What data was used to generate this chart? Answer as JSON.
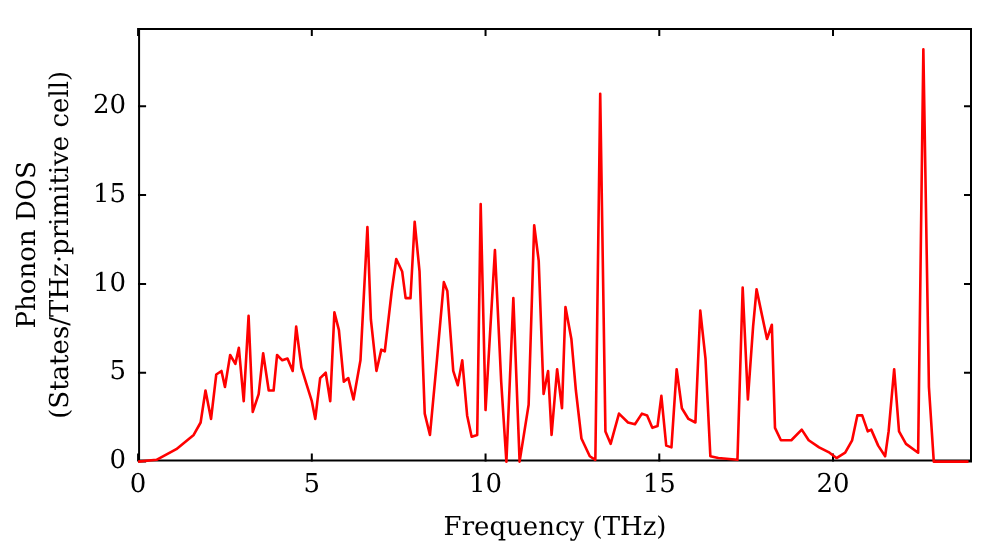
{
  "chart_data": {
    "type": "line",
    "xlabel": "Frequency (THz)",
    "ylabel": "Phonon DOS\n(States/THz·primitive cell)",
    "xlim": [
      0,
      24
    ],
    "xticks": [
      0,
      5,
      10,
      15,
      20
    ],
    "ylim": [
      0,
      24.4
    ],
    "yticks": [
      0,
      5,
      10,
      15,
      20
    ],
    "grid": false,
    "legend": false,
    "marker": "none",
    "line_style": "solid",
    "series": [
      {
        "color": "#ff0000",
        "x": [
          0,
          0.53,
          1.1,
          1.6,
          1.8,
          1.94,
          2.1,
          2.25,
          2.4,
          2.5,
          2.65,
          2.8,
          2.9,
          3.04,
          3.18,
          3.3,
          3.47,
          3.6,
          3.76,
          3.9,
          4.0,
          4.15,
          4.3,
          4.45,
          4.55,
          4.7,
          4.84,
          5.0,
          5.1,
          5.24,
          5.4,
          5.53,
          5.65,
          5.78,
          5.92,
          6.05,
          6.2,
          6.4,
          6.6,
          6.7,
          6.86,
          7.0,
          7.1,
          7.3,
          7.43,
          7.6,
          7.7,
          7.84,
          7.96,
          8.1,
          8.25,
          8.4,
          8.6,
          8.8,
          8.9,
          9.07,
          9.2,
          9.33,
          9.47,
          9.6,
          9.76,
          9.86,
          10.0,
          10.27,
          10.45,
          10.6,
          10.8,
          10.98,
          11.24,
          11.4,
          11.53,
          11.67,
          11.8,
          11.9,
          12.06,
          12.2,
          12.3,
          12.47,
          12.6,
          12.76,
          13.0,
          13.16,
          13.3,
          13.45,
          13.6,
          13.84,
          14.1,
          14.3,
          14.5,
          14.65,
          14.8,
          14.95,
          15.06,
          15.2,
          15.35,
          15.5,
          15.65,
          15.84,
          16.04,
          16.18,
          16.33,
          16.47,
          16.7,
          17.25,
          17.4,
          17.55,
          17.7,
          17.8,
          17.96,
          18.1,
          18.24,
          18.33,
          18.5,
          18.8,
          19.1,
          19.3,
          19.6,
          19.9,
          20.1,
          20.35,
          20.55,
          20.7,
          20.84,
          21.0,
          21.1,
          21.3,
          21.5,
          21.6,
          21.76,
          21.9,
          22.1,
          22.45,
          22.6,
          22.76,
          22.9,
          23.9
        ],
        "values": [
          0,
          0.1,
          0.7,
          1.5,
          2.2,
          4.0,
          2.4,
          4.9,
          5.1,
          4.2,
          6.0,
          5.5,
          6.4,
          3.4,
          8.2,
          2.8,
          3.8,
          6.1,
          4.0,
          4.0,
          6.0,
          5.7,
          5.8,
          5.1,
          7.6,
          5.3,
          4.4,
          3.4,
          2.4,
          4.7,
          5.0,
          3.4,
          8.4,
          7.4,
          4.5,
          4.7,
          3.5,
          5.7,
          13.2,
          8.0,
          5.1,
          6.3,
          6.2,
          9.6,
          11.4,
          10.7,
          9.2,
          9.2,
          13.5,
          10.7,
          2.7,
          1.5,
          5.7,
          10.1,
          9.6,
          5.1,
          4.3,
          5.7,
          2.6,
          1.4,
          1.5,
          14.5,
          2.9,
          11.9,
          4.5,
          0,
          9.2,
          0,
          3.2,
          13.3,
          11.3,
          3.8,
          5.1,
          1.5,
          5.2,
          3.0,
          8.7,
          6.9,
          4.0,
          1.3,
          0.3,
          0.1,
          20.7,
          1.7,
          1.0,
          2.7,
          2.2,
          2.1,
          2.7,
          2.6,
          1.9,
          2.0,
          3.7,
          0.9,
          0.8,
          5.2,
          3.0,
          2.4,
          2.2,
          8.5,
          5.8,
          0.3,
          0.2,
          0.1,
          9.8,
          3.5,
          7.6,
          9.7,
          8.2,
          6.9,
          7.7,
          1.9,
          1.2,
          1.2,
          1.8,
          1.2,
          0.8,
          0.5,
          0.2,
          0.5,
          1.2,
          2.6,
          2.6,
          1.7,
          1.8,
          0.9,
          0.3,
          1.7,
          5.2,
          1.7,
          1.0,
          0.5,
          23.2,
          4.2,
          0,
          0
        ]
      }
    ]
  }
}
